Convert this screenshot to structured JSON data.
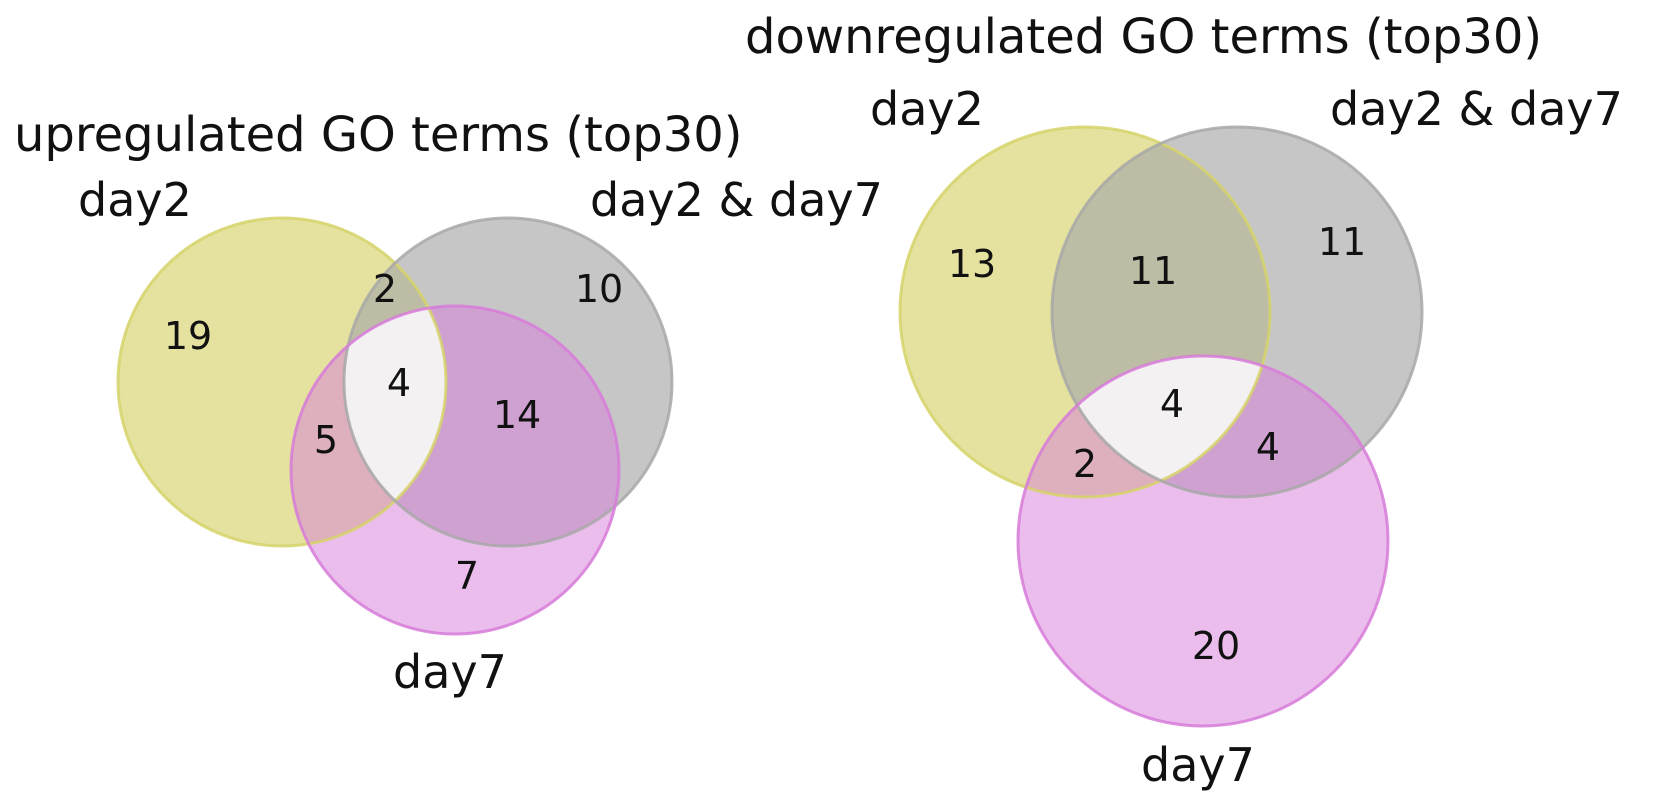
{
  "colors": {
    "day2": "#d6d36a",
    "day2_and_day7": "#a8a8a8",
    "day7": "#d77bd9",
    "triple_overlap": "#f5f5f5"
  },
  "diagrams": [
    {
      "title": "upregulated GO terms (top30)",
      "sets": {
        "a": "day2",
        "b": "day2 & day7",
        "c": "day7"
      },
      "counts": {
        "a_only": "19",
        "b_only": "10",
        "c_only": "7",
        "ab": "2",
        "ac": "5",
        "bc": "14",
        "abc": "4"
      }
    },
    {
      "title": "downregulated GO terms (top30)",
      "sets": {
        "a": "day2",
        "b": "day2 & day7",
        "c": "day7"
      },
      "counts": {
        "a_only": "13",
        "b_only": "11",
        "c_only": "20",
        "ab": "11",
        "ac": "2",
        "bc": "4",
        "abc": "4"
      }
    }
  ]
}
